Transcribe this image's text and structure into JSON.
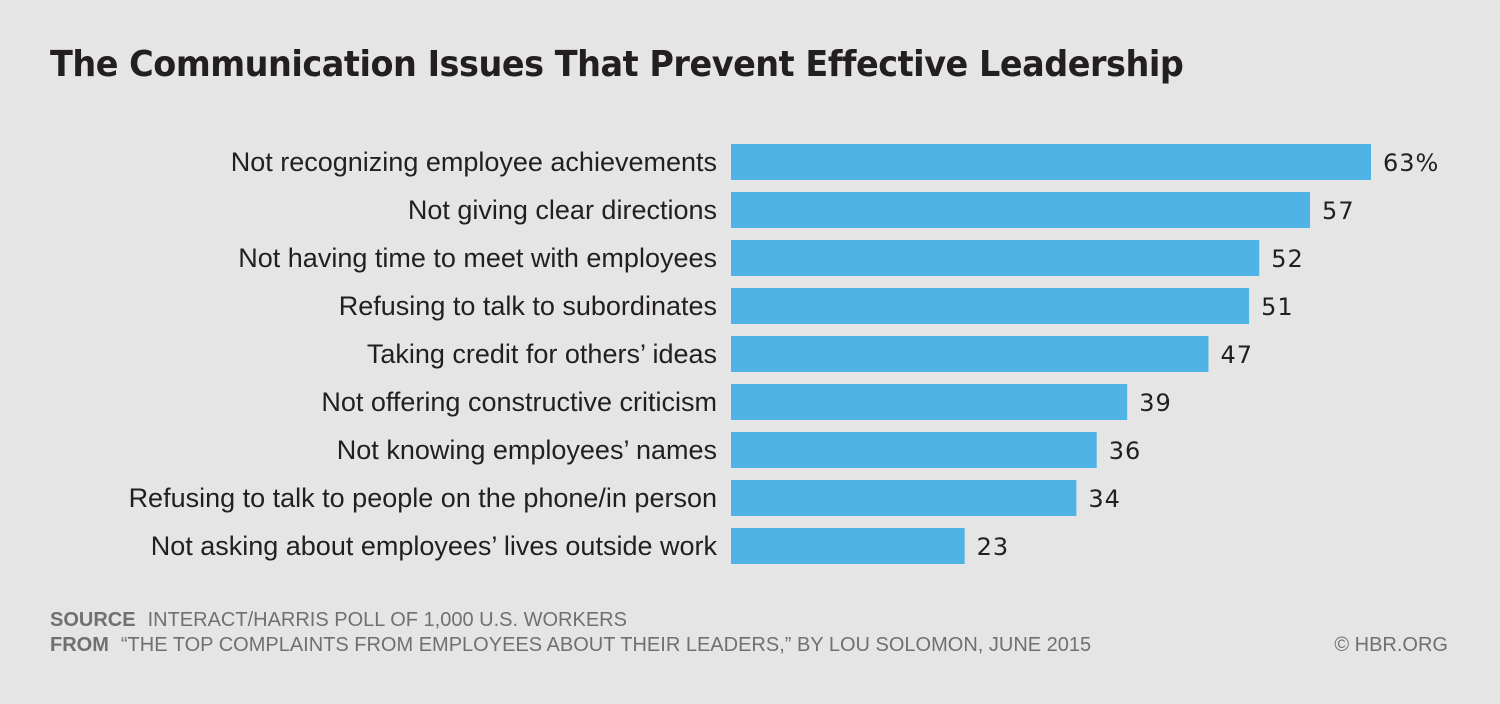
{
  "chart_data": {
    "type": "bar",
    "orientation": "horizontal",
    "title": "The Communication Issues That Prevent Effective Leadership",
    "categories": [
      "Not recognizing employee achievements",
      "Not giving clear directions",
      "Not having time to meet with employees",
      "Refusing to talk to subordinates",
      "Taking credit for others’ ideas",
      "Not offering constructive criticism",
      "Not knowing employees’ names",
      "Refusing to talk to people on the phone/in person",
      "Not asking about employees’ lives outside work"
    ],
    "values": [
      63,
      57,
      52,
      51,
      47,
      39,
      36,
      34,
      23
    ],
    "value_labels": [
      "63%",
      "57",
      "52",
      "51",
      "47",
      "39",
      "36",
      "34",
      "23"
    ],
    "unit": "%",
    "xlim": [
      0,
      63
    ],
    "grid": false,
    "legend": "none",
    "bar_color": "#4fb3e6",
    "xlabel": "",
    "ylabel": ""
  },
  "footer": {
    "source_label": "SOURCE",
    "source_text": "INTERACT/HARRIS POLL OF 1,000 U.S. WORKERS",
    "from_label": "FROM",
    "from_text": "“THE TOP COMPLAINTS FROM EMPLOYEES ABOUT THEIR LEADERS,” BY LOU SOLOMON, JUNE 2015",
    "copyright": "© HBR.ORG"
  }
}
